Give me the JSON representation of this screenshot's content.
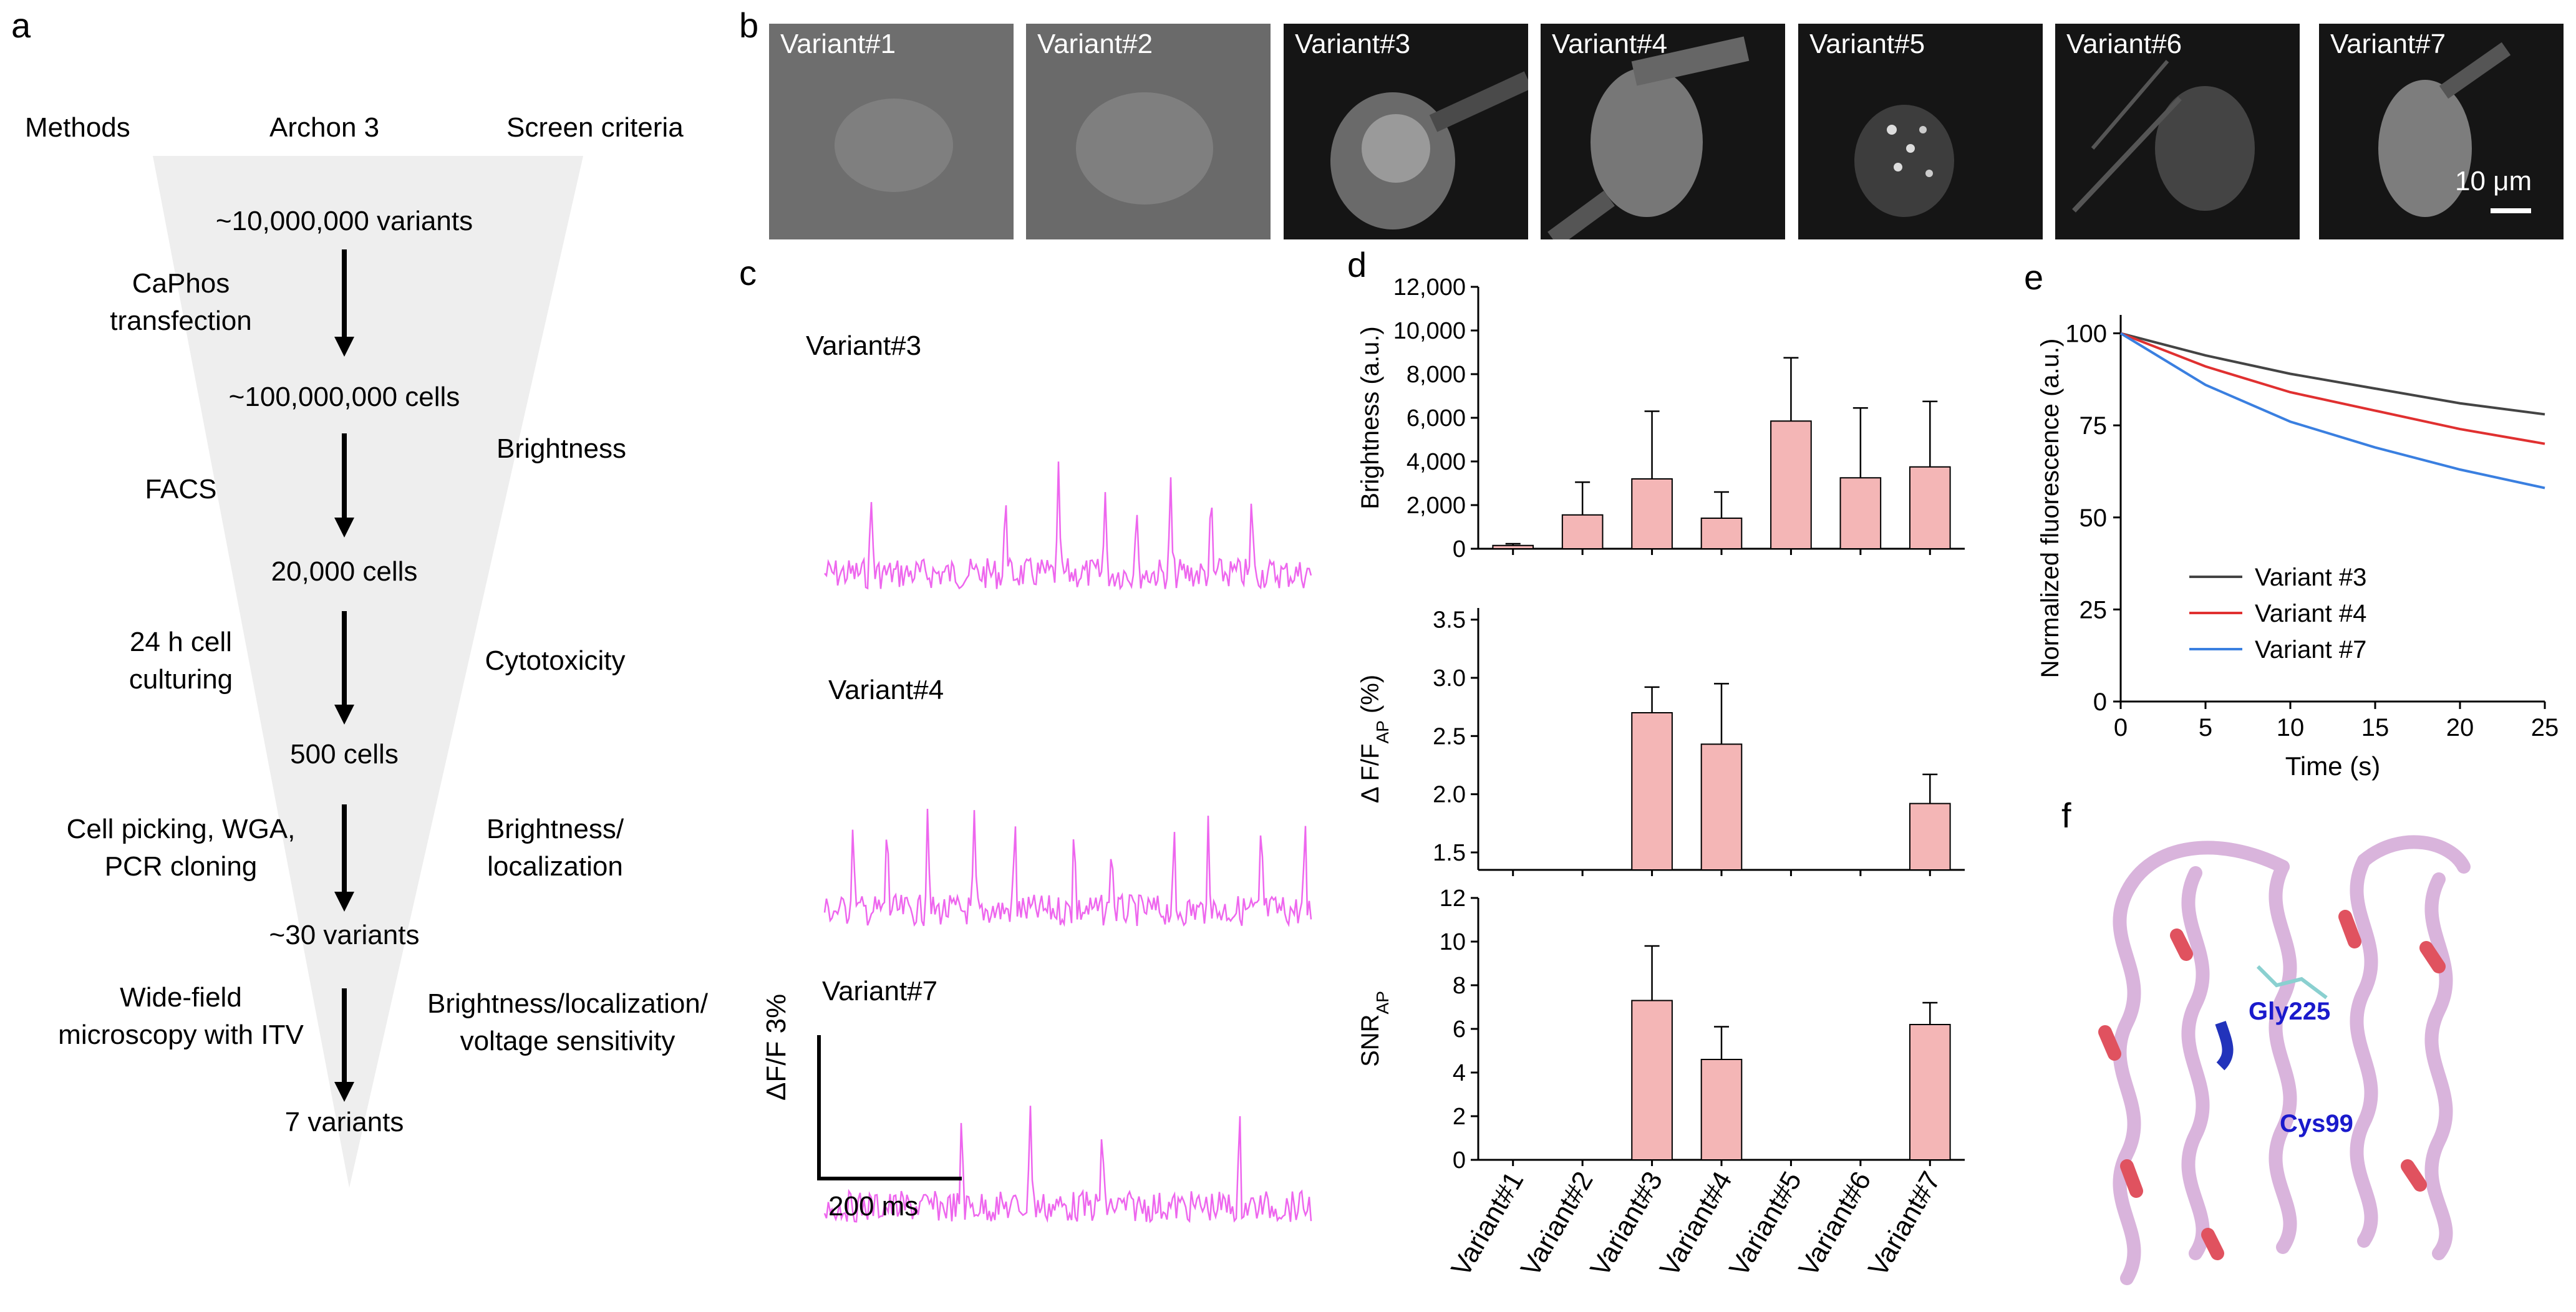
{
  "panels": {
    "a": "a",
    "b": "b",
    "c": "c",
    "d": "d",
    "e": "e",
    "f": "f"
  },
  "panel_a": {
    "headers": {
      "methods": "Methods",
      "archon": "Archon 3",
      "criteria": "Screen criteria"
    },
    "stages": [
      "~10,000,000 variants",
      "~100,000,000 cells",
      "20,000 cells",
      "500 cells",
      "~30 variants",
      "7 variants"
    ],
    "methods": [
      {
        "line1": "CaPhos",
        "line2": "transfection"
      },
      {
        "line1": "FACS",
        "line2": ""
      },
      {
        "line1": "24 h cell",
        "line2": "culturing"
      },
      {
        "line1": "Cell picking, WGA,",
        "line2": "PCR cloning"
      },
      {
        "line1": "Wide-field",
        "line2": "microscopy with ITV"
      }
    ],
    "criteria": [
      {
        "line1": "Brightness",
        "line2": ""
      },
      {
        "line1": "Cytotoxicity",
        "line2": ""
      },
      {
        "line1": "Brightness/",
        "line2": "localization"
      },
      {
        "line1": "Brightness/localization/",
        "line2": "voltage sensitivity"
      }
    ]
  },
  "panel_b": {
    "images": [
      "Variant#1",
      "Variant#2",
      "Variant#3",
      "Variant#4",
      "Variant#5",
      "Variant#6",
      "Variant#7"
    ],
    "scale_bar": "10 μm"
  },
  "panel_c": {
    "traces": [
      "Variant#3",
      "Variant#4",
      "Variant#7"
    ],
    "scale_y": "ΔF/F 3%",
    "scale_x": "200 ms",
    "trace_color": "#ee66ee"
  },
  "chart_data": [
    {
      "type": "bar",
      "title": "",
      "ylabel": "Brightness (a.u.)",
      "categories": [
        "Variant#1",
        "Variant#2",
        "Variant#3",
        "Variant#4",
        "Variant#5",
        "Variant#6",
        "Variant#7"
      ],
      "values": [
        150,
        1550,
        3200,
        1400,
        5850,
        3250,
        3750
      ],
      "errors": [
        80,
        1500,
        3100,
        1200,
        2900,
        3200,
        3000
      ],
      "ylim": [
        0,
        12000
      ],
      "yticks": [
        0,
        2000,
        4000,
        6000,
        8000,
        10000,
        12000
      ],
      "ytick_labels": [
        "0",
        "2,000",
        "4,000",
        "6,000",
        "8,000",
        "10,000",
        "12,000"
      ],
      "bar_color": "#f4b6b6"
    },
    {
      "type": "bar",
      "ylabel": "Δ F/F",
      "ylabel_sub": "AP",
      "ylabel_unit": " (%)",
      "categories": [
        "Variant#1",
        "Variant#2",
        "Variant#3",
        "Variant#4",
        "Variant#5",
        "Variant#6",
        "Variant#7"
      ],
      "values": [
        null,
        null,
        2.7,
        2.43,
        null,
        null,
        1.92
      ],
      "errors": [
        null,
        null,
        0.22,
        0.52,
        null,
        null,
        0.25
      ],
      "ylim": [
        1.35,
        3.6
      ],
      "yticks": [
        1.5,
        2.0,
        2.5,
        3.0,
        3.5
      ],
      "ytick_labels": [
        "1.5",
        "2.0",
        "2.5",
        "3.0",
        "3.5"
      ],
      "bar_color": "#f4b6b6"
    },
    {
      "type": "bar",
      "ylabel": "SNR",
      "ylabel_sub": "AP",
      "categories": [
        "Variant#1",
        "Variant#2",
        "Variant#3",
        "Variant#4",
        "Variant#5",
        "Variant#6",
        "Variant#7"
      ],
      "values": [
        null,
        null,
        7.3,
        4.6,
        null,
        null,
        6.2
      ],
      "errors": [
        null,
        null,
        2.5,
        1.5,
        null,
        null,
        1.0
      ],
      "ylim": [
        0,
        12
      ],
      "yticks": [
        0,
        2,
        4,
        6,
        8,
        10,
        12
      ],
      "ytick_labels": [
        "0",
        "2",
        "4",
        "6",
        "8",
        "10",
        "12"
      ],
      "bar_color": "#f4b6b6"
    },
    {
      "type": "line",
      "xlabel": "Time (s)",
      "ylabel": "Normalized fluorescence (a.u.)",
      "xlim": [
        0,
        25
      ],
      "ylim": [
        0,
        105
      ],
      "xticks": [
        0,
        5,
        10,
        15,
        20,
        25
      ],
      "yticks": [
        0,
        25,
        50,
        75,
        100
      ],
      "series": [
        {
          "name": "Variant #3",
          "color": "#444444",
          "x": [
            0,
            5,
            10,
            15,
            20,
            25
          ],
          "y": [
            100,
            94,
            89,
            85,
            81,
            78
          ]
        },
        {
          "name": "Variant #4",
          "color": "#e03030",
          "x": [
            0,
            5,
            10,
            15,
            20,
            25
          ],
          "y": [
            100,
            91,
            84,
            79,
            74,
            70
          ]
        },
        {
          "name": "Variant #7",
          "color": "#3a7fe0",
          "x": [
            0,
            5,
            10,
            15,
            20,
            25
          ],
          "y": [
            100,
            86,
            76,
            69,
            63,
            58
          ]
        }
      ]
    }
  ],
  "panel_f": {
    "labels": [
      "Gly225",
      "Cys99"
    ],
    "label_color": "#1a1acc"
  }
}
